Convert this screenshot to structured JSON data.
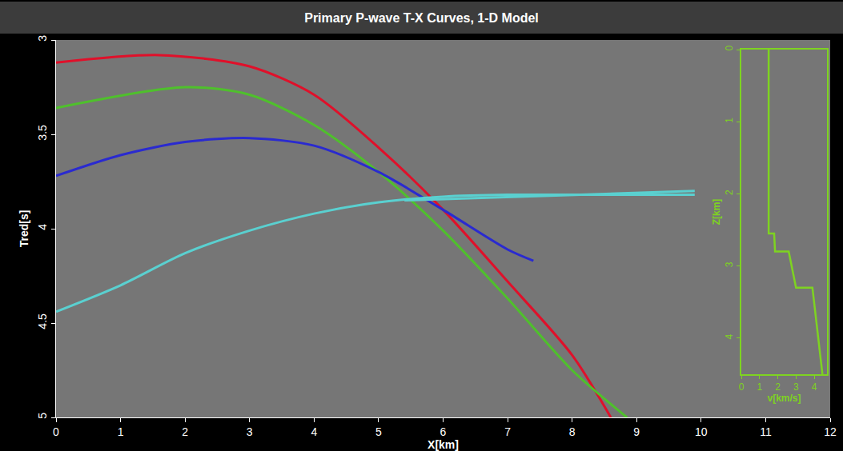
{
  "chart_data": [
    {
      "type": "line",
      "title": "Primary P-wave T-X Curves, 1-D Model",
      "x_label": "X[km]",
      "y_label": "Tred[s]",
      "xlim": [
        0,
        12
      ],
      "xticks": [
        0,
        1,
        2,
        3,
        4,
        5,
        6,
        7,
        8,
        9,
        10,
        11,
        12
      ],
      "ylim": [
        5,
        3
      ],
      "yticks": [
        3,
        3.5,
        4,
        4.5,
        5
      ],
      "grid": false,
      "series": [
        {
          "color": "#e0102a",
          "x": [
            0,
            1.6,
            3,
            4,
            5,
            6,
            7,
            8,
            8.6
          ],
          "values": [
            3.12,
            3.08,
            3.14,
            3.29,
            3.57,
            3.9,
            4.28,
            4.67,
            5.0
          ]
        },
        {
          "color": "#4fc02c",
          "x": [
            0,
            2,
            3,
            4,
            5,
            6,
            7,
            8,
            8.85
          ],
          "values": [
            3.36,
            3.25,
            3.29,
            3.45,
            3.7,
            4.01,
            4.37,
            4.75,
            5.0
          ]
        },
        {
          "color": "#2a2ad0",
          "x": [
            0,
            1,
            2,
            3,
            4,
            5,
            6,
            7,
            7.4
          ],
          "values": [
            3.72,
            3.61,
            3.54,
            3.52,
            3.56,
            3.7,
            3.9,
            4.11,
            4.17
          ]
        },
        {
          "color": "#5ad0d0",
          "x": [
            0,
            1,
            2,
            3,
            4,
            5,
            6,
            7,
            8,
            9.9
          ],
          "values": [
            4.44,
            4.3,
            4.13,
            4.01,
            3.92,
            3.86,
            3.83,
            3.82,
            3.82,
            3.82
          ]
        },
        {
          "color": "#5ad0d0",
          "x": [
            5.4,
            9.9
          ],
          "values": [
            3.85,
            3.8
          ]
        }
      ]
    },
    {
      "type": "line",
      "x_label": "v[km/s]",
      "y_label": "Z[km]",
      "xlim": [
        0,
        4.7
      ],
      "xticks": [
        0,
        1,
        2,
        3,
        4
      ],
      "ylim": [
        4.5,
        0
      ],
      "yticks": [
        0,
        1,
        2,
        3,
        4
      ],
      "grid": false,
      "color": "#7ed321",
      "x": [
        1.5,
        1.5,
        1.8,
        1.85,
        2.6,
        3.0,
        3.9,
        4.45
      ],
      "values": [
        0,
        2.55,
        2.55,
        2.8,
        2.8,
        3.3,
        3.3,
        4.5
      ]
    }
  ]
}
